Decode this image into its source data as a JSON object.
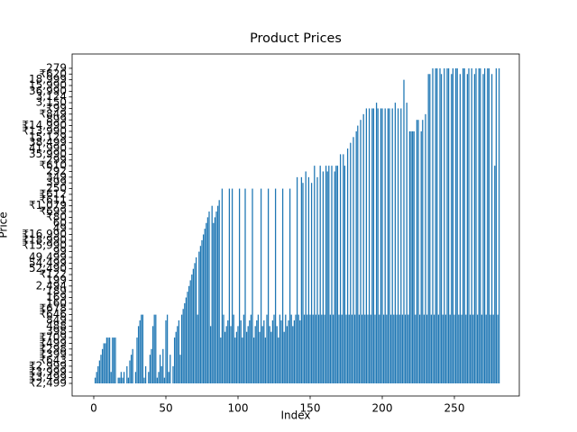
{
  "chart_data": {
    "type": "bar",
    "title": "Product Prices",
    "x_label": "Index",
    "y_label": "Price",
    "color": "#1f77b4",
    "xlim": [
      -15,
      295
    ],
    "xticks": [
      0,
      50,
      100,
      150,
      200,
      250
    ],
    "ylim": [
      -2.2,
      57.5
    ],
    "yticks": [
      {
        "value": 0,
        "label": "₹2,499"
      },
      {
        "value": 1,
        "label": "₹3,499"
      },
      {
        "value": 2,
        "label": "₹3,999"
      },
      {
        "value": 3,
        "label": "₹2,999"
      },
      {
        "value": 4,
        "label": "₹643"
      },
      {
        "value": 5,
        "label": "₹399"
      },
      {
        "value": 6,
        "label": "₹298"
      },
      {
        "value": 7,
        "label": "₹499"
      },
      {
        "value": 8,
        "label": "₹709"
      },
      {
        "value": 9,
        "label": "398"
      },
      {
        "value": 10,
        "label": "488"
      },
      {
        "value": 11,
        "label": "849"
      },
      {
        "value": 12,
        "label": "₹646"
      },
      {
        "value": 13,
        "label": "₹678"
      },
      {
        "value": 14,
        "label": "160"
      },
      {
        "value": 15,
        "label": "169"
      },
      {
        "value": 16,
        "label": "189"
      },
      {
        "value": 17,
        "label": "2,494"
      },
      {
        "value": 18,
        "label": "199"
      },
      {
        "value": 19,
        "label": "₹122"
      },
      {
        "value": 20,
        "label": "52,490"
      },
      {
        "value": 21,
        "label": "54,499"
      },
      {
        "value": 22,
        "label": "49,499"
      },
      {
        "value": 23,
        "label": "99"
      },
      {
        "value": 24,
        "label": "₹15,990"
      },
      {
        "value": 25,
        "label": "₹18,990"
      },
      {
        "value": 26,
        "label": "₹16,990"
      },
      {
        "value": 27,
        "label": "49"
      },
      {
        "value": 28,
        "label": "60"
      },
      {
        "value": 29,
        "label": "₹80"
      },
      {
        "value": 30,
        "label": "₹699"
      },
      {
        "value": 31,
        "label": "₹1,079"
      },
      {
        "value": 32,
        "label": "₹611"
      },
      {
        "value": 33,
        "label": "₹612"
      },
      {
        "value": 34,
        "label": "250"
      },
      {
        "value": 35,
        "label": "399"
      },
      {
        "value": 36,
        "label": "349"
      },
      {
        "value": 37,
        "label": "292"
      },
      {
        "value": 38,
        "label": "₹610"
      },
      {
        "value": 39,
        "label": "299"
      },
      {
        "value": 40,
        "label": "35,990"
      },
      {
        "value": 41,
        "label": "41,990"
      },
      {
        "value": 42,
        "label": "38,499"
      },
      {
        "value": 43,
        "label": "15,129"
      },
      {
        "value": 44,
        "label": "₹13,990"
      },
      {
        "value": 45,
        "label": "₹14,990"
      },
      {
        "value": 46,
        "label": "899"
      },
      {
        "value": 47,
        "label": "₹849"
      },
      {
        "value": 48,
        "label": "₹99"
      },
      {
        "value": 49,
        "label": "3,150"
      },
      {
        "value": 50,
        "label": "3,124"
      },
      {
        "value": 51,
        "label": "36,990"
      },
      {
        "value": 52,
        "label": "15,990"
      },
      {
        "value": 53,
        "label": "18,999"
      },
      {
        "value": 54,
        "label": "₹620"
      },
      {
        "value": 55,
        "label": "279"
      }
    ],
    "values": [
      0,
      1,
      2,
      3,
      4,
      5,
      6,
      7,
      7,
      8,
      8,
      8,
      2,
      8,
      8,
      8,
      0,
      1,
      1,
      2,
      1,
      2,
      0,
      3,
      1,
      4,
      5,
      6,
      0,
      2,
      8,
      10,
      11,
      12,
      12,
      1,
      3,
      0,
      2,
      5,
      6,
      10,
      12,
      12,
      1,
      2,
      5,
      3,
      6,
      1,
      11,
      12,
      2,
      5,
      0,
      3,
      8,
      9,
      10,
      11,
      5,
      12,
      13,
      14,
      15,
      16,
      17,
      18,
      19,
      20,
      21,
      22,
      12,
      23,
      24,
      25,
      26,
      27,
      28,
      29,
      30,
      10,
      31,
      28,
      29,
      30,
      31,
      32,
      8,
      34,
      12,
      9,
      10,
      11,
      34,
      10,
      34,
      12,
      8,
      9,
      10,
      34,
      11,
      8,
      12,
      34,
      9,
      10,
      11,
      12,
      34,
      8,
      10,
      11,
      12,
      9,
      34,
      10,
      11,
      8,
      12,
      34,
      10,
      9,
      11,
      12,
      34,
      10,
      8,
      12,
      11,
      34,
      9,
      12,
      10,
      11,
      34,
      12,
      10,
      11,
      12,
      36,
      12,
      11,
      36,
      35,
      12,
      37,
      12,
      36,
      12,
      35,
      12,
      38,
      12,
      36,
      12,
      38,
      12,
      37,
      12,
      38,
      37,
      38,
      12,
      38,
      12,
      37,
      38,
      38,
      12,
      40,
      12,
      40,
      38,
      12,
      41,
      12,
      42,
      12,
      43,
      12,
      44,
      45,
      12,
      46,
      12,
      47,
      12,
      48,
      12,
      48,
      12,
      48,
      48,
      12,
      49,
      48,
      12,
      48,
      48,
      12,
      48,
      12,
      48,
      48,
      12,
      48,
      12,
      49,
      12,
      48,
      12,
      48,
      12,
      53,
      12,
      49,
      12,
      44,
      44,
      44,
      44,
      12,
      46,
      46,
      12,
      44,
      46,
      12,
      47,
      12,
      54,
      54,
      12,
      55,
      12,
      55,
      55,
      12,
      55,
      54,
      12,
      55,
      12,
      55,
      55,
      12,
      54,
      55,
      12,
      55,
      55,
      12,
      54,
      12,
      55,
      55,
      12,
      54,
      55,
      12,
      55,
      12,
      54,
      55,
      12,
      55,
      55,
      12,
      54,
      55,
      12,
      55,
      55,
      12,
      54,
      12,
      38,
      55,
      12,
      55
    ]
  }
}
